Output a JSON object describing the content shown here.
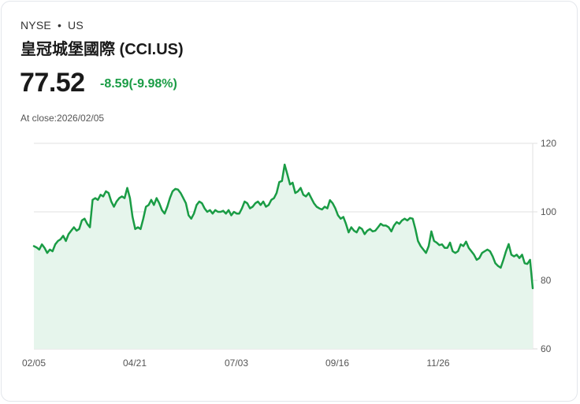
{
  "header": {
    "exchange": "NYSE",
    "separator": "•",
    "market": "US",
    "title": "皇冠城堡國際 (CCI.US)",
    "price": "77.52",
    "change": "-8.59(-9.98%)",
    "close_label": "At close:2026/02/05"
  },
  "colors": {
    "line": "#1a9c45",
    "fill": "#e6f5ec",
    "change_text": "#1a9c45",
    "grid": "#e0e0e0"
  },
  "chart_data": {
    "type": "area",
    "title": "皇冠城堡國際 (CCI.US)",
    "xlabel": "",
    "ylabel": "",
    "ylim": [
      60,
      120
    ],
    "yticks": [
      120,
      100,
      80,
      60
    ],
    "xticks": [
      "02/05",
      "04/21",
      "07/03",
      "09/16",
      "11/26"
    ],
    "grid": true,
    "y_axis_position": "right",
    "values": [
      90.0,
      89.6,
      89.0,
      90.5,
      89.5,
      88.0,
      89.0,
      88.5,
      90.5,
      91.5,
      92.0,
      93.0,
      91.5,
      93.5,
      94.5,
      95.5,
      94.5,
      95.0,
      97.5,
      98.0,
      96.5,
      95.5,
      103.5,
      104.0,
      103.5,
      105.0,
      104.5,
      106.0,
      105.5,
      103.0,
      101.5,
      103.0,
      104.0,
      104.5,
      104.0,
      107.0,
      104.0,
      98.5,
      95.0,
      95.5,
      95.0,
      98.0,
      101.5,
      102.0,
      103.5,
      102.0,
      104.0,
      102.5,
      100.5,
      99.5,
      101.5,
      104.0,
      106.0,
      106.7,
      106.5,
      105.5,
      104.0,
      102.5,
      99.0,
      98.0,
      99.5,
      102.0,
      103.0,
      102.5,
      101.0,
      100.0,
      100.5,
      99.5,
      100.5,
      100.0,
      100.0,
      100.3,
      99.5,
      100.5,
      99.0,
      100.0,
      99.5,
      99.5,
      101.0,
      103.0,
      102.5,
      101.0,
      101.5,
      102.5,
      103.0,
      102.0,
      103.0,
      101.5,
      102.0,
      103.5,
      104.0,
      105.5,
      108.7,
      109.0,
      113.8,
      111.0,
      108.0,
      108.5,
      105.5,
      106.0,
      107.0,
      105.0,
      104.5,
      105.5,
      104.0,
      102.5,
      101.5,
      101.0,
      100.7,
      101.5,
      101.0,
      103.4,
      102.5,
      101.0,
      99.0,
      98.0,
      98.5,
      96.5,
      94.0,
      95.5,
      94.5,
      94.0,
      95.5,
      95.0,
      93.5,
      94.5,
      95.0,
      94.3,
      94.5,
      95.5,
      96.5,
      96.0,
      96.0,
      95.5,
      94.3,
      96.0,
      97.0,
      96.5,
      97.5,
      98.0,
      97.5,
      98.2,
      98.0,
      95.0,
      91.5,
      90.0,
      89.0,
      88.0,
      90.0,
      94.3,
      91.5,
      91.0,
      90.3,
      90.5,
      89.5,
      89.5,
      91.0,
      88.5,
      88.0,
      88.5,
      90.5,
      90.0,
      91.3,
      89.5,
      88.5,
      87.5,
      86.0,
      86.5,
      88.0,
      88.5,
      89.0,
      88.5,
      87.0,
      85.0,
      84.2,
      83.7,
      86.0,
      88.5,
      90.6,
      87.5,
      87.0,
      87.5,
      86.5,
      87.5,
      85.0,
      84.8,
      86.0,
      77.7
    ]
  }
}
